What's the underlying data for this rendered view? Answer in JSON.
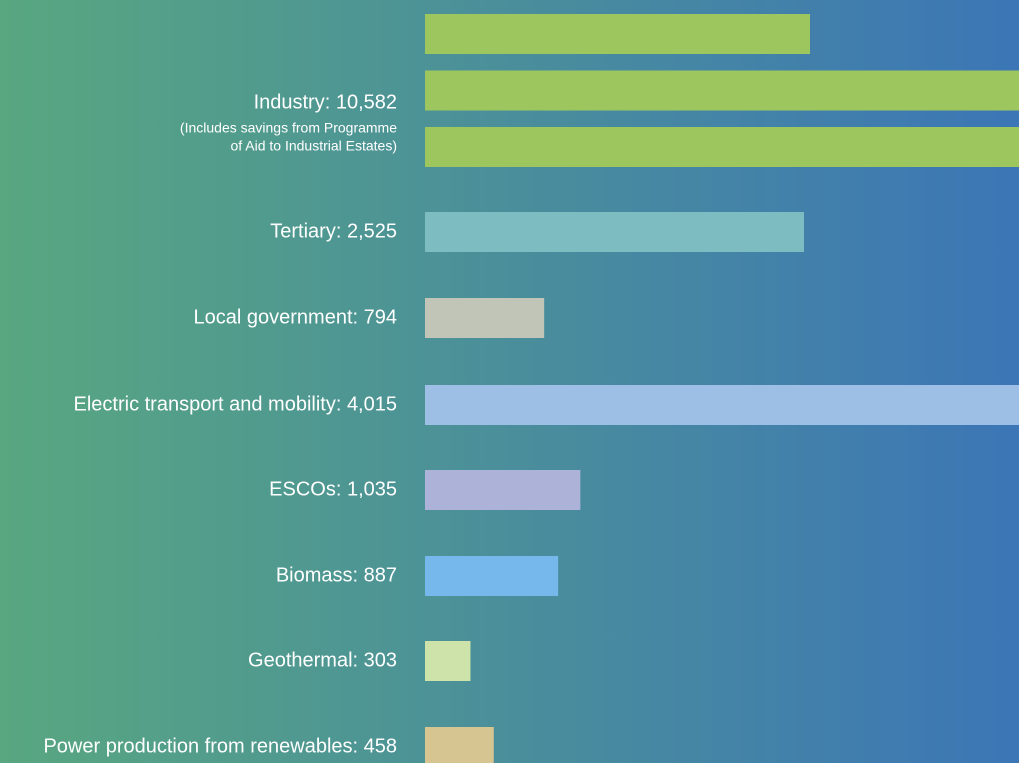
{
  "chart_data": {
    "type": "bar",
    "labels": [
      "Industry: 10,582",
      "Tertiary: 2,525",
      "Local government: 794",
      "Electric transport and mobility: 4,015",
      "ESCOs: 1,035",
      "Biomass: 887",
      "Geothermal: 303",
      "Power production from renewables: 458"
    ],
    "values": [
      10582,
      2525,
      794,
      4015,
      1035,
      887,
      303,
      458
    ],
    "colors": [
      "#9dc75e",
      "#7dbcc0",
      "#c0c5b8",
      "#9dbfe6",
      "#adb3d8",
      "#76b8ec",
      "#cde3a9",
      "#d6c591"
    ],
    "note": [
      "(Includes savings from Programme",
      "of Aid to Industrial Estates)"
    ]
  }
}
